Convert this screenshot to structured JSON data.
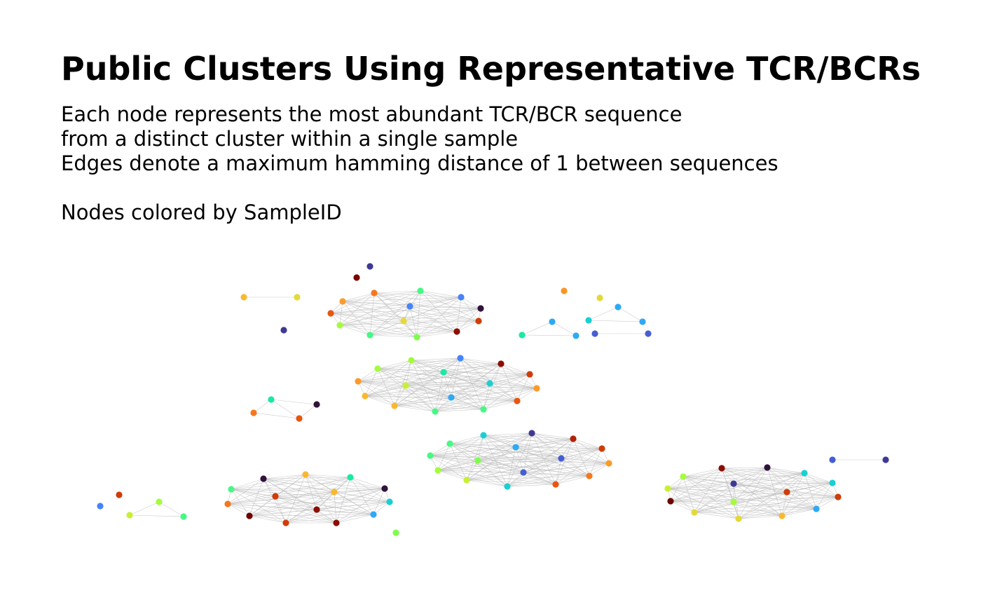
{
  "title": "Public Clusters Using Representative TCR/BCRs",
  "subtitle_lines": [
    "Each node represents the most abundant TCR/BCR sequence",
    "from a distinct cluster within a single sample",
    "Edges denote a maximum hamming distance of 1 between sequences",
    "",
    "Nodes colored by SampleID"
  ],
  "legend": "none",
  "edge_color": "#bdbdbd",
  "palette": [
    "#30123b",
    "#3e3994",
    "#455ed2",
    "#4584f9",
    "#2ea9f5",
    "#18d0d4",
    "#1ae8a5",
    "#46f884",
    "#7ffd4e",
    "#a4fc3c",
    "#c9ef34",
    "#e4d93a",
    "#f8b931",
    "#fb9b2a",
    "#f5771e",
    "#e85610",
    "#cf3c07",
    "#b02203",
    "#8b0e01",
    "#7a0403",
    "#6e0000"
  ]
}
